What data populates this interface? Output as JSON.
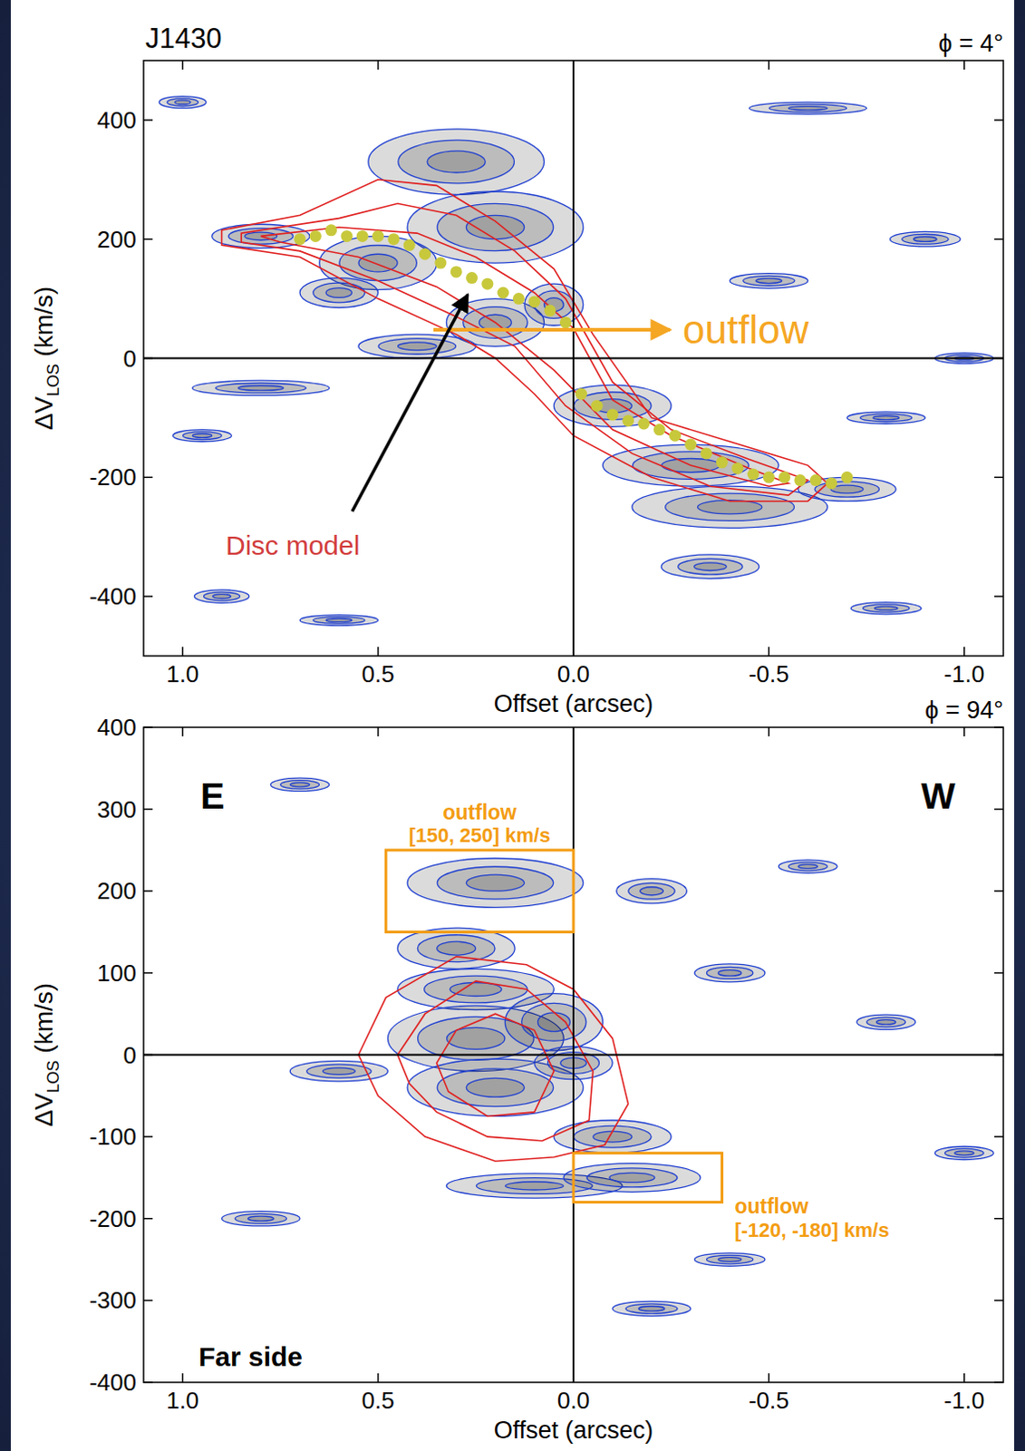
{
  "chart_data": [
    {
      "type": "position_velocity",
      "title": "J1430",
      "subtitle": "ϕ = 4°",
      "x_label": "Offset (arcsec)",
      "y_label": {
        "text": "ΔV",
        "subscript": "LOS",
        "unit": "(km/s)"
      },
      "xlim": [
        1.1,
        -1.1
      ],
      "xticks": [
        {
          "value": 1,
          "label": "1.0"
        },
        {
          "value": 0.5,
          "label": "0.5"
        },
        {
          "value": 0,
          "label": "0.0"
        },
        {
          "value": -0.5,
          "label": "-0.5"
        },
        {
          "value": -1,
          "label": "-1.0"
        }
      ],
      "ylim": [
        -500,
        500
      ],
      "yticks": [
        -400,
        -200,
        0,
        200,
        400
      ],
      "annotations": [
        {
          "text": "outflow",
          "color": "#f5a623"
        },
        {
          "text": "Disc model",
          "color": "#d23c3c"
        }
      ],
      "emission": {
        "x": [
          0.3,
          0.2,
          0.5,
          0.2,
          0.05,
          0.6,
          0.8,
          0.4,
          -0.1,
          -0.3,
          -0.4,
          -0.35,
          -0.7,
          0.8,
          -0.9,
          0.95,
          -0.5,
          1.0,
          0.9,
          -0.8,
          -1.0,
          -0.6,
          0.6,
          -0.8
        ],
        "values": [
          330,
          220,
          160,
          60,
          90,
          110,
          205,
          20,
          -80,
          -180,
          -250,
          -350,
          -220,
          -50,
          200,
          -130,
          130,
          430,
          -400,
          -100,
          0,
          420,
          -440,
          -420
        ],
        "x_width": [
          0.45,
          0.45,
          0.3,
          0.25,
          0.15,
          0.2,
          0.25,
          0.3,
          0.3,
          0.45,
          0.5,
          0.25,
          0.25,
          0.35,
          0.18,
          0.15,
          0.2,
          0.12,
          0.14,
          0.2,
          0.15,
          0.3,
          0.2,
          0.18
        ],
        "y_width": [
          110,
          120,
          90,
          80,
          70,
          50,
          40,
          40,
          70,
          70,
          70,
          40,
          40,
          25,
          25,
          20,
          25,
          20,
          22,
          20,
          18,
          20,
          18,
          20
        ]
      },
      "disc_model": {
        "color": "#e02020",
        "contours": [
          {
            "x": [
              0.9,
              0.7,
              0.5,
              0.35,
              0.2,
              0.05,
              -0.05,
              -0.2,
              -0.4,
              -0.6,
              -0.65,
              -0.6,
              -0.4,
              -0.2,
              0,
              0.1,
              0.2,
              0.3,
              0.5,
              0.7,
              0.9
            ],
            "values": [
              215,
              240,
              300,
              290,
              230,
              150,
              40,
              -100,
              -140,
              -180,
              -210,
              -240,
              -240,
              -200,
              -130,
              -60,
              0,
              40,
              100,
              170,
              190
            ]
          },
          {
            "x": [
              0.85,
              0.6,
              0.45,
              0.3,
              0.15,
              0.02,
              -0.1,
              -0.25,
              -0.45,
              -0.6,
              -0.55,
              -0.35,
              -0.15,
              0.02,
              0.15,
              0.3,
              0.5,
              0.7,
              0.85
            ],
            "values": [
              210,
              235,
              260,
              240,
              180,
              100,
              -40,
              -120,
              -170,
              -205,
              -230,
              -215,
              -160,
              -80,
              20,
              70,
              130,
              180,
              195
            ]
          },
          {
            "x": [
              0.8,
              0.6,
              0.4,
              0.25,
              0.1,
              0.0,
              -0.1,
              -0.25,
              -0.45,
              -0.55,
              -0.5,
              -0.3,
              -0.1,
              0.05,
              0.2,
              0.35,
              0.55,
              0.75
            ],
            "values": [
              205,
              220,
              210,
              170,
              110,
              50,
              -70,
              -130,
              -185,
              -210,
              -215,
              -180,
              -120,
              -20,
              60,
              120,
              170,
              195
            ]
          }
        ]
      },
      "rotation_curve": {
        "color": "#c8c83c",
        "x": [
          0.7,
          0.66,
          0.62,
          0.58,
          0.54,
          0.5,
          0.46,
          0.42,
          0.38,
          0.34,
          0.3,
          0.26,
          0.22,
          0.18,
          0.14,
          0.1,
          0.06,
          0.02,
          -0.02,
          -0.06,
          -0.1,
          -0.14,
          -0.18,
          -0.22,
          -0.26,
          -0.3,
          -0.34,
          -0.38,
          -0.42,
          -0.46,
          -0.5,
          -0.54,
          -0.58,
          -0.62,
          -0.66,
          -0.7
        ],
        "values": [
          200,
          205,
          215,
          205,
          205,
          205,
          200,
          190,
          175,
          160,
          145,
          135,
          125,
          110,
          100,
          95,
          80,
          60,
          -60,
          -80,
          -95,
          -105,
          -110,
          -120,
          -130,
          -145,
          -160,
          -175,
          -185,
          -195,
          -200,
          -200,
          -205,
          -205,
          -210,
          -200
        ]
      }
    },
    {
      "type": "position_velocity",
      "subtitle": "ϕ = 94°",
      "x_label": "Offset (arcsec)",
      "y_label": {
        "text": "ΔV",
        "subscript": "LOS",
        "unit": "(km/s)"
      },
      "xlim": [
        1.1,
        -1.1
      ],
      "xticks": [
        {
          "value": 1,
          "label": "1.0"
        },
        {
          "value": 0.5,
          "label": "0.5"
        },
        {
          "value": 0,
          "label": "0.0"
        },
        {
          "value": -0.5,
          "label": "-0.5"
        },
        {
          "value": -1,
          "label": "-1.0"
        }
      ],
      "ylim": [
        -400,
        400
      ],
      "yticks": [
        -400,
        -300,
        -200,
        -100,
        0,
        100,
        200,
        300,
        400
      ],
      "annotations": [
        {
          "text": "E",
          "color": "#000000"
        },
        {
          "text": "W",
          "color": "#000000"
        },
        {
          "text": "Far side",
          "color": "#000000"
        }
      ],
      "boxes": {
        "color": "#f39c12",
        "items": [
          {
            "x": [
              0.48,
              0
            ],
            "y": [
              150,
              250
            ],
            "label": "outflow",
            "range_label": "[150, 250] km/s"
          },
          {
            "x": [
              0,
              -0.38
            ],
            "y": [
              -120,
              -180
            ],
            "label": "outflow",
            "range_label": "[-120, -180] km/s"
          }
        ]
      },
      "emission": {
        "x": [
          0.2,
          0.3,
          0.25,
          0.25,
          0.05,
          0.2,
          -0.1,
          0.1,
          -0.15,
          -0.2,
          -0.4,
          0.6,
          -0.8,
          -1.0,
          0.7,
          -0.4,
          -0.2,
          0.0,
          -0.6,
          0.8
        ],
        "values": [
          210,
          130,
          80,
          20,
          40,
          -40,
          -100,
          -160,
          -150,
          200,
          100,
          -20,
          40,
          -120,
          330,
          -250,
          -310,
          -10,
          230,
          -200
        ],
        "x_width": [
          0.45,
          0.3,
          0.4,
          0.45,
          0.25,
          0.45,
          0.3,
          0.45,
          0.35,
          0.18,
          0.18,
          0.25,
          0.15,
          0.15,
          0.15,
          0.18,
          0.2,
          0.2,
          0.15,
          0.2
        ],
        "y_width": [
          60,
          50,
          50,
          80,
          70,
          70,
          40,
          30,
          35,
          30,
          22,
          25,
          18,
          16,
          16,
          16,
          18,
          40,
          16,
          18
        ]
      },
      "disc_model": {
        "color": "#e02020",
        "contours": [
          {
            "x": [
              0.55,
              0.48,
              0.3,
              0.12,
              0.0,
              -0.1,
              -0.14,
              -0.08,
              0.05,
              0.2,
              0.38,
              0.5
            ],
            "values": [
              0,
              70,
              120,
              110,
              80,
              20,
              -60,
              -110,
              -125,
              -130,
              -100,
              -50
            ]
          },
          {
            "x": [
              0.45,
              0.38,
              0.25,
              0.12,
              0.02,
              -0.05,
              -0.04,
              0.08,
              0.22,
              0.35,
              0.42
            ],
            "values": [
              0,
              50,
              90,
              80,
              40,
              -20,
              -80,
              -105,
              -100,
              -70,
              -35
            ]
          },
          {
            "x": [
              0.35,
              0.3,
              0.2,
              0.1,
              0.05,
              0.1,
              0.22,
              0.32
            ],
            "values": [
              -10,
              30,
              50,
              30,
              -20,
              -70,
              -75,
              -45
            ]
          }
        ]
      }
    }
  ]
}
